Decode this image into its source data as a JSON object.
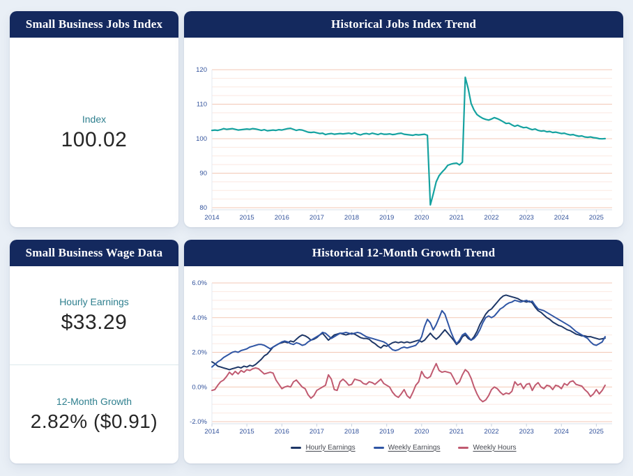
{
  "page": {
    "background": "#e9eff6",
    "header_color": "#14295e",
    "accent_teal": "#2e7f8e"
  },
  "cards": {
    "jobs_index": {
      "title": "Small Business Jobs Index",
      "label": "Index",
      "value": "100.02"
    },
    "jobs_trend": {
      "title": "Historical Jobs Index Trend"
    },
    "wage_data": {
      "title": "Small Business Wage Data",
      "sections": [
        {
          "label": "Hourly Earnings",
          "value": "$33.29"
        },
        {
          "label": "12-Month Growth",
          "value": "2.82% ($0.91)"
        }
      ]
    },
    "growth_trend": {
      "title": "Historical 12-Month Growth Trend"
    }
  },
  "chart_data": [
    {
      "type": "line",
      "title": "Historical Jobs Index Trend",
      "x_start": 2014,
      "x_step_months": 1,
      "x_domain": [
        2014,
        2025.45
      ],
      "xlabels": [
        "2014",
        "2015",
        "2016",
        "2017",
        "2018",
        "2019",
        "2020",
        "2021",
        "2022",
        "2023",
        "2024",
        "2025"
      ],
      "ylim": [
        80,
        120
      ],
      "yticks": [
        80,
        90,
        100,
        110,
        120
      ],
      "ytick_labels": [
        "80",
        "90",
        "100",
        "110",
        "120"
      ],
      "y_minor_step": 2.5,
      "grid_major_color": "#f3c7b4",
      "grid_minor_color": "#fbe8e0",
      "axis_label_color": "#33539c",
      "legend_position": "none",
      "series": [
        {
          "name": "Jobs Index",
          "color": "#16a2a0",
          "width": 2.2,
          "values": [
            102.4,
            102.5,
            102.4,
            102.6,
            102.9,
            102.7,
            102.8,
            102.9,
            102.7,
            102.5,
            102.6,
            102.7,
            102.8,
            102.7,
            102.9,
            102.8,
            102.6,
            102.4,
            102.6,
            102.3,
            102.4,
            102.5,
            102.4,
            102.6,
            102.5,
            102.7,
            102.9,
            103.0,
            102.7,
            102.4,
            102.6,
            102.5,
            102.2,
            101.9,
            101.8,
            101.9,
            101.7,
            101.5,
            101.6,
            101.2,
            101.4,
            101.5,
            101.3,
            101.4,
            101.5,
            101.4,
            101.5,
            101.6,
            101.4,
            101.7,
            101.3,
            101.1,
            101.4,
            101.5,
            101.3,
            101.6,
            101.4,
            101.2,
            101.5,
            101.3,
            101.3,
            101.4,
            101.2,
            101.3,
            101.5,
            101.6,
            101.3,
            101.2,
            101.1,
            101.0,
            101.2,
            101.1,
            101.2,
            101.3,
            101.0,
            80.8,
            84.0,
            87.5,
            89.3,
            90.3,
            91.2,
            92.3,
            92.6,
            92.8,
            92.9,
            92.4,
            93.2,
            117.8,
            114.5,
            110.2,
            108.3,
            107.0,
            106.4,
            105.9,
            105.6,
            105.4,
            105.7,
            106.1,
            105.8,
            105.4,
            104.9,
            104.4,
            104.5,
            104.0,
            103.6,
            103.9,
            103.5,
            103.2,
            103.3,
            102.9,
            102.6,
            102.8,
            102.4,
            102.2,
            102.3,
            102.0,
            102.1,
            101.8,
            101.9,
            101.7,
            101.5,
            101.6,
            101.3,
            101.1,
            101.2,
            100.9,
            100.7,
            100.8,
            100.5,
            100.4,
            100.5,
            100.3,
            100.2,
            100.0,
            99.95,
            100.02
          ]
        }
      ]
    },
    {
      "type": "line",
      "title": "Historical 12-Month Growth Trend",
      "x_start": 2014,
      "x_step_months": 1,
      "x_domain": [
        2014,
        2025.45
      ],
      "xlabels": [
        "2014",
        "2015",
        "2016",
        "2017",
        "2018",
        "2019",
        "2020",
        "2021",
        "2022",
        "2023",
        "2024",
        "2025"
      ],
      "ylim": [
        -2,
        6
      ],
      "yticks": [
        -2,
        0,
        2,
        4,
        6
      ],
      "ytick_labels": [
        "-2.0%",
        "0.0%",
        "2.0%",
        "4.0%",
        "6.0%"
      ],
      "y_minor_step": 0.5,
      "grid_major_color": "#f3c7b4",
      "grid_minor_color": "#fbe8e0",
      "axis_label_color": "#33539c",
      "legend_position": "bottom",
      "series": [
        {
          "name": "Hourly Earnings",
          "color": "#1d3666",
          "width": 2,
          "values": [
            1.45,
            1.35,
            1.2,
            1.15,
            1.1,
            1.05,
            1.0,
            1.05,
            1.1,
            1.15,
            1.1,
            1.2,
            1.15,
            1.25,
            1.2,
            1.3,
            1.45,
            1.6,
            1.8,
            1.9,
            2.1,
            2.3,
            2.4,
            2.5,
            2.55,
            2.6,
            2.55,
            2.65,
            2.6,
            2.75,
            2.9,
            3.0,
            2.95,
            2.85,
            2.7,
            2.75,
            2.85,
            3.0,
            3.1,
            2.9,
            2.7,
            2.85,
            3.0,
            3.05,
            3.1,
            3.05,
            3.0,
            3.05,
            3.1,
            3.05,
            2.95,
            2.85,
            2.8,
            2.8,
            2.75,
            2.6,
            2.5,
            2.35,
            2.25,
            2.4,
            2.35,
            2.45,
            2.55,
            2.6,
            2.55,
            2.6,
            2.55,
            2.6,
            2.55,
            2.6,
            2.65,
            2.7,
            2.6,
            2.7,
            2.9,
            3.1,
            2.9,
            2.75,
            2.9,
            3.1,
            3.3,
            3.1,
            2.9,
            2.7,
            2.45,
            2.6,
            2.9,
            3.0,
            2.8,
            2.7,
            2.9,
            3.2,
            3.6,
            3.9,
            4.2,
            4.4,
            4.5,
            4.7,
            4.9,
            5.1,
            5.25,
            5.3,
            5.25,
            5.2,
            5.15,
            5.1,
            5.0,
            4.95,
            4.9,
            4.95,
            4.85,
            4.6,
            4.4,
            4.3,
            4.15,
            4.0,
            3.9,
            3.75,
            3.65,
            3.55,
            3.5,
            3.4,
            3.3,
            3.25,
            3.15,
            3.05,
            3.0,
            2.95,
            2.95,
            2.9,
            2.9,
            2.85,
            2.8,
            2.75,
            2.78,
            2.82
          ]
        },
        {
          "name": "Weekly Earnings",
          "color": "#2f55a4",
          "width": 2,
          "values": [
            1.15,
            1.3,
            1.45,
            1.55,
            1.7,
            1.8,
            1.9,
            2.0,
            2.05,
            2.0,
            2.1,
            2.15,
            2.2,
            2.3,
            2.35,
            2.4,
            2.45,
            2.45,
            2.4,
            2.3,
            2.2,
            2.3,
            2.4,
            2.5,
            2.6,
            2.65,
            2.6,
            2.5,
            2.45,
            2.55,
            2.5,
            2.4,
            2.45,
            2.6,
            2.7,
            2.8,
            2.9,
            3.0,
            3.15,
            3.1,
            2.95,
            2.8,
            2.9,
            3.0,
            3.1,
            3.1,
            3.15,
            3.1,
            3.05,
            3.1,
            3.15,
            3.1,
            3.0,
            2.9,
            2.85,
            2.8,
            2.75,
            2.7,
            2.65,
            2.6,
            2.5,
            2.3,
            2.15,
            2.1,
            2.15,
            2.25,
            2.3,
            2.25,
            2.3,
            2.35,
            2.4,
            2.6,
            2.9,
            3.5,
            3.9,
            3.7,
            3.3,
            3.6,
            4.0,
            4.4,
            4.2,
            3.7,
            3.2,
            2.8,
            2.5,
            2.7,
            3.0,
            3.1,
            2.9,
            2.7,
            2.8,
            3.0,
            3.3,
            3.7,
            4.0,
            4.1,
            4.0,
            4.1,
            4.3,
            4.5,
            4.6,
            4.75,
            4.85,
            4.9,
            5.0,
            4.95,
            4.9,
            4.95,
            5.0,
            4.9,
            4.95,
            4.7,
            4.5,
            4.45,
            4.4,
            4.3,
            4.2,
            4.1,
            4.0,
            3.9,
            3.8,
            3.7,
            3.6,
            3.5,
            3.35,
            3.2,
            3.1,
            3.0,
            2.9,
            2.8,
            2.6,
            2.45,
            2.4,
            2.5,
            2.6,
            2.9
          ]
        },
        {
          "name": "Weekly Hours",
          "color": "#c05a70",
          "width": 2,
          "values": [
            -0.2,
            -0.15,
            0.1,
            0.3,
            0.4,
            0.6,
            0.85,
            0.7,
            0.9,
            0.75,
            0.95,
            0.85,
            1.0,
            0.95,
            1.05,
            1.1,
            1.05,
            0.9,
            0.75,
            0.8,
            0.85,
            0.8,
            0.4,
            0.15,
            -0.1,
            0.0,
            0.05,
            0.0,
            0.3,
            0.4,
            0.2,
            0.0,
            -0.1,
            -0.45,
            -0.65,
            -0.5,
            -0.2,
            -0.1,
            0.0,
            0.1,
            0.7,
            0.45,
            -0.15,
            -0.2,
            0.3,
            0.45,
            0.3,
            0.1,
            0.15,
            0.45,
            0.4,
            0.35,
            0.2,
            0.15,
            0.3,
            0.25,
            0.15,
            0.3,
            0.45,
            0.2,
            0.1,
            0.0,
            -0.3,
            -0.5,
            -0.6,
            -0.4,
            -0.15,
            -0.5,
            -0.65,
            -0.3,
            0.1,
            0.3,
            0.9,
            0.6,
            0.5,
            0.6,
            1.0,
            1.35,
            0.95,
            0.85,
            0.9,
            0.85,
            0.8,
            0.5,
            0.15,
            0.3,
            0.7,
            1.0,
            0.85,
            0.5,
            0.0,
            -0.4,
            -0.7,
            -0.85,
            -0.75,
            -0.5,
            -0.15,
            0.0,
            -0.1,
            -0.3,
            -0.45,
            -0.35,
            -0.4,
            -0.25,
            0.3,
            0.1,
            0.2,
            -0.1,
            0.15,
            0.2,
            -0.2,
            0.1,
            0.25,
            0.0,
            -0.1,
            0.1,
            0.05,
            -0.15,
            0.1,
            0.05,
            -0.1,
            0.2,
            0.1,
            0.3,
            0.35,
            0.15,
            0.1,
            0.05,
            -0.15,
            -0.3,
            -0.55,
            -0.4,
            -0.15,
            -0.4,
            -0.2,
            0.1
          ]
        }
      ]
    }
  ]
}
